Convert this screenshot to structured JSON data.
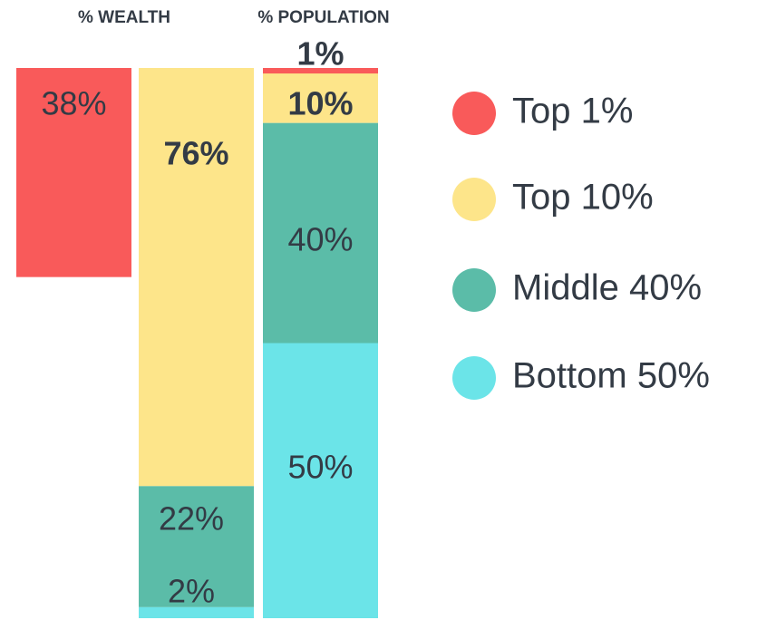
{
  "chart_data": {
    "type": "bar",
    "categories": [
      "% WEALTH",
      "% POPULATION"
    ],
    "series": [
      {
        "name": "Top 1%",
        "color": "#f95a5a",
        "values": [
          38,
          1
        ],
        "value_labels": [
          "38%",
          "1%"
        ]
      },
      {
        "name": "Top 10%",
        "color": "#fde58a",
        "values": [
          76,
          10
        ],
        "value_labels": [
          "76%",
          "10%"
        ]
      },
      {
        "name": "Middle 40%",
        "color": "#5bbca8",
        "values": [
          22,
          40
        ],
        "value_labels": [
          "22%",
          "40%"
        ]
      },
      {
        "name": "Bottom 50%",
        "color": "#6be4e8",
        "values": [
          2,
          50
        ],
        "value_labels": [
          "2%",
          "50%"
        ]
      }
    ]
  }
}
